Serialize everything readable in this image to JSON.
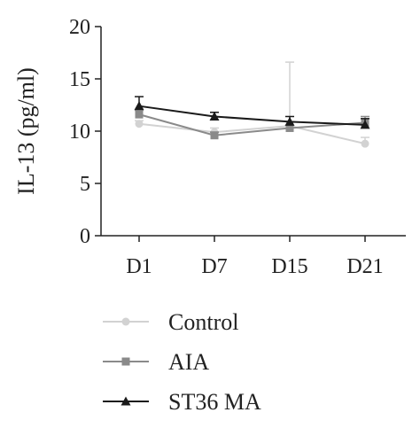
{
  "chart_data": {
    "type": "line",
    "ylabel": "IL-13 (pg/ml)",
    "categories": [
      "D1",
      "D7",
      "D15",
      "D21"
    ],
    "ylim": [
      0,
      20
    ],
    "yticks": [
      0,
      5,
      10,
      15,
      20
    ],
    "grid": false,
    "legend_position": "bottom",
    "series": [
      {
        "name": "Control",
        "color": "#d2d2d2",
        "marker": "circle",
        "values": [
          10.7,
          9.9,
          10.5,
          8.8
        ],
        "error": [
          0.3,
          0.4,
          6.1,
          0.6
        ]
      },
      {
        "name": "AIA",
        "color": "#8a8a8a",
        "marker": "square",
        "values": [
          11.6,
          9.6,
          10.3,
          10.8
        ],
        "error": [
          0.4,
          0.3,
          0.6,
          0.6
        ]
      },
      {
        "name": "ST36 MA",
        "color": "#1a1a1a",
        "marker": "triangle",
        "values": [
          12.4,
          11.4,
          10.9,
          10.6
        ],
        "error": [
          0.9,
          0.4,
          0.5,
          0.6
        ]
      }
    ]
  }
}
